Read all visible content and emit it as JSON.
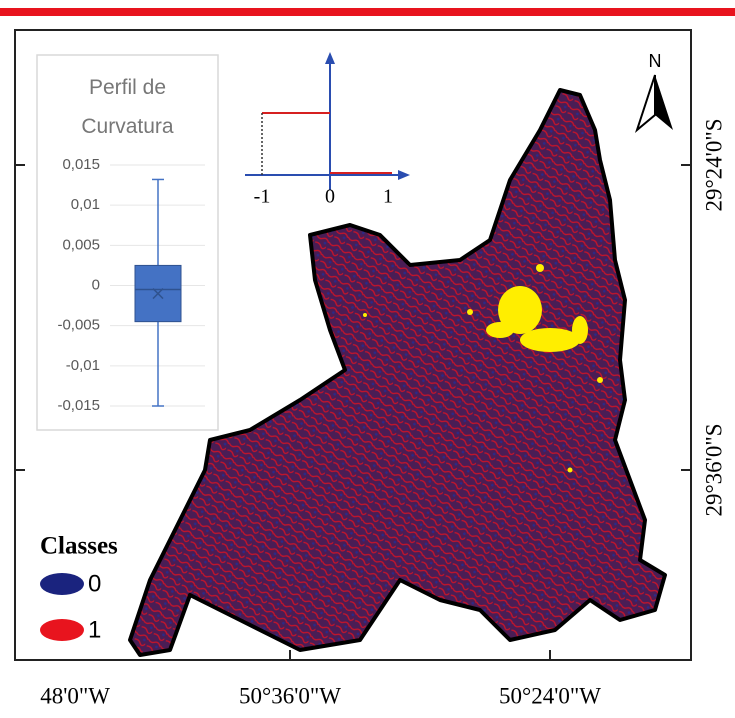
{
  "map": {
    "north": "N",
    "lat_labels": [
      "29°24'0\"S",
      "29°36'0\"S"
    ],
    "lon_labels": [
      "48'0\"W",
      "50°36'0\"W",
      "50°24'0\"W"
    ],
    "diagram_labels": [
      "-1",
      "0",
      "1"
    ],
    "legend": {
      "title": "Classes",
      "items": [
        {
          "label": "0",
          "color": "#1a237e"
        },
        {
          "label": "1",
          "color": "#e8141e"
        }
      ]
    }
  },
  "chart_data": {
    "type": "box",
    "title": "Perfil de Curvatura",
    "min": -0.015,
    "q1": -0.0045,
    "median": -0.0005,
    "q3": 0.0025,
    "max": 0.0132,
    "mean": -0.001,
    "color": "#4472c4",
    "ylim": [
      -0.015,
      0.015
    ],
    "yticks": [
      {
        "value": 0.015,
        "label": "0,015"
      },
      {
        "value": 0.01,
        "label": "0,01"
      },
      {
        "value": 0.005,
        "label": "0,005"
      },
      0,
      {
        "value": -0.005,
        "label": "-0,005"
      },
      {
        "value": -0.01,
        "label": "-0,01"
      },
      {
        "value": -0.015,
        "label": "-0,015"
      }
    ],
    "grid": true
  }
}
